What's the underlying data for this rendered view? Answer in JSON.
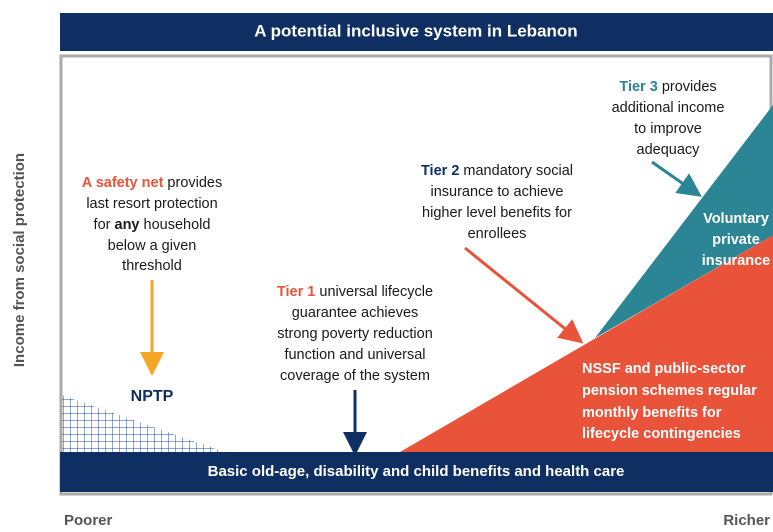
{
  "title": "A potential inclusive system in Lebanon",
  "y_axis_label": "Income from social protection",
  "x_axis_left": "Poorer",
  "x_axis_right": "Richer",
  "base_bar": "Basic old-age, disability and child benefits and health care",
  "safety_net": {
    "lead": "A safety net",
    "line0_rest": " provides",
    "line1": "last resort protection",
    "line2_a": "for ",
    "line2_bold": "any",
    "line2_b": " household",
    "line3": "below a given",
    "line4": "threshold"
  },
  "nptp": "NPTP",
  "tier1": {
    "lead": "Tier 1",
    "line0_rest": " universal lifecycle",
    "line1": "guarantee achieves",
    "line2": "strong poverty reduction",
    "line3": "function and universal",
    "line4": "coverage of the system"
  },
  "tier2": {
    "lead": "Tier 2",
    "line0_rest": " mandatory social",
    "line1": "insurance to achieve",
    "line2": "higher level benefits for",
    "line3": "enrollees"
  },
  "tier3": {
    "lead": "Tier 3",
    "line0_rest": " provides",
    "line1": "additional income",
    "line2": "to improve",
    "line3": "adequacy"
  },
  "voluntary": [
    "Voluntary",
    "private",
    "insurance"
  ],
  "nssf": [
    "NSSF and public-sector",
    "pension schemes regular",
    "monthly benefits for",
    "lifecycle contingencies"
  ]
}
